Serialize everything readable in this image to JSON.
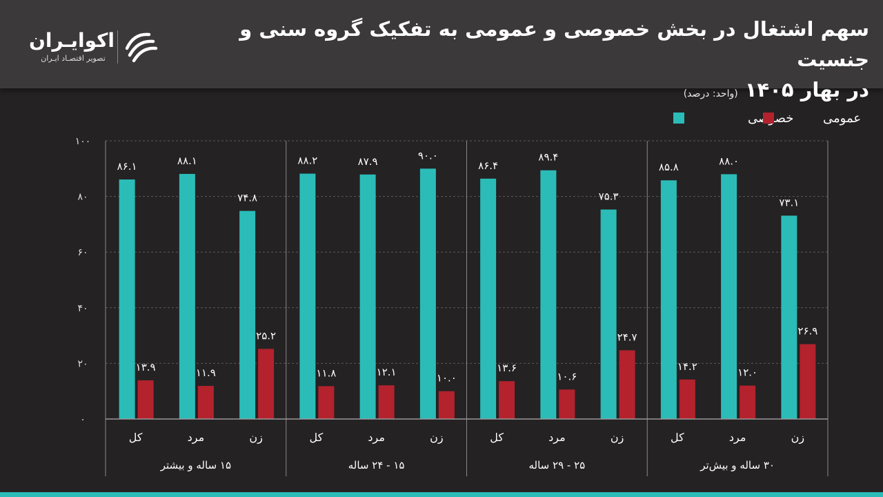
{
  "header": {
    "title_line1": "سهم اشتغال در بخش خصوصی و عمومی به تفکیک گروه سنی و جنسیت",
    "title_line2": "در بهار ۱۴۰۵",
    "unit": "(واحد: درصد)"
  },
  "logo": {
    "name": "اکوایـران",
    "tagline": "تصویر اقتصـاد ایـران"
  },
  "colors": {
    "private": "#2bbcb8",
    "public": "#b3222d",
    "bg": "#242223",
    "header": "#3b393a"
  },
  "chart_data": {
    "type": "bar",
    "ylim": [
      0,
      100
    ],
    "yticks": [
      "۰",
      "۲۰",
      "۴۰",
      "۶۰",
      "۸۰",
      "۱۰۰"
    ],
    "legend_placement": "top-right",
    "series": [
      {
        "name": "خصوصی",
        "color": "#2bbcb8",
        "values": [
          86.1,
          88.1,
          74.8,
          88.2,
          87.9,
          90.0,
          86.4,
          89.4,
          75.3,
          85.8,
          88.0,
          73.1
        ],
        "labels": [
          "۸۶.۱",
          "۸۸.۱",
          "۷۴.۸",
          "۸۸.۲",
          "۸۷.۹",
          "۹۰.۰",
          "۸۶.۴",
          "۸۹.۴",
          "۷۵.۳",
          "۸۵.۸",
          "۸۸.۰",
          "۷۳.۱"
        ]
      },
      {
        "name": "عمومی",
        "color": "#b3222d",
        "values": [
          13.9,
          11.9,
          25.2,
          11.8,
          12.1,
          10.0,
          13.6,
          10.6,
          24.7,
          14.2,
          12.0,
          26.9
        ],
        "labels": [
          "۱۳.۹",
          "۱۱.۹",
          "۲۵.۲",
          "۱۱.۸",
          "۱۲.۱",
          "۱۰.۰",
          "۱۳.۶",
          "۱۰.۶",
          "۲۴.۷",
          "۱۴.۲",
          "۱۲.۰",
          "۲۶.۹"
        ]
      }
    ],
    "groups": [
      {
        "label": "۱۵ ساله و بیشتر",
        "categories": [
          "کل",
          "مرد",
          "زن"
        ]
      },
      {
        "label": "۱۵ - ۲۴ ساله",
        "categories": [
          "کل",
          "مرد",
          "زن"
        ]
      },
      {
        "label": "۲۵ - ۲۹ ساله",
        "categories": [
          "کل",
          "مرد",
          "زن"
        ]
      },
      {
        "label": "۳۰ ساله و بیش‌تر",
        "categories": [
          "کل",
          "مرد",
          "زن"
        ]
      }
    ]
  }
}
